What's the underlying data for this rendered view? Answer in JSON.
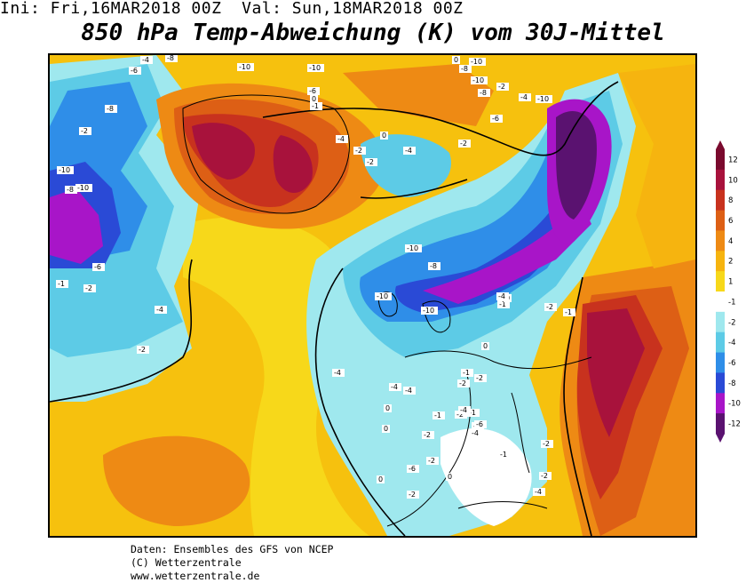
{
  "header": {
    "init": "Ini: Fri,16MAR2018 00Z",
    "valid": "Val: Sun,18MAR2018 00Z"
  },
  "title": "850 hPa Temp-Abweichung (K) vom 30J-Mittel",
  "legend": {
    "ticks": [
      "12",
      "10",
      "8",
      "6",
      "4",
      "2",
      "1",
      "-1",
      "-2",
      "-4",
      "-6",
      "-8",
      "-10",
      "-12"
    ],
    "colors": [
      "#7a0a2e",
      "#a8123c",
      "#c8321e",
      "#dd5f15",
      "#ee8a14",
      "#f6b40f",
      "#f7d81a",
      "#ffffff",
      "#9fe8ee",
      "#5dcbe6",
      "#2f8ee8",
      "#2a4ad6",
      "#a815c8",
      "#5a1270"
    ]
  },
  "map_labels": [
    {
      "t": "-4"
    },
    {
      "t": "-6"
    },
    {
      "t": "-8"
    },
    {
      "t": "-2"
    },
    {
      "t": "-10"
    },
    {
      "t": "-8"
    },
    {
      "t": "-10"
    },
    {
      "t": "-6"
    },
    {
      "t": "-8"
    },
    {
      "t": "-10"
    },
    {
      "t": "-10"
    },
    {
      "t": "-6"
    },
    {
      "t": "-2"
    },
    {
      "t": "-1"
    },
    {
      "t": "-4"
    },
    {
      "t": "-2"
    },
    {
      "t": "0"
    },
    {
      "t": "-4"
    },
    {
      "t": "-2"
    },
    {
      "t": "0"
    },
    {
      "t": "0"
    },
    {
      "t": "-10"
    },
    {
      "t": "-10"
    },
    {
      "t": "-8"
    },
    {
      "t": "-8"
    },
    {
      "t": "-2"
    },
    {
      "t": "-4"
    },
    {
      "t": "-6"
    },
    {
      "t": "-10"
    },
    {
      "t": "-10"
    },
    {
      "t": "-10"
    },
    {
      "t": "-8"
    },
    {
      "t": "-2"
    },
    {
      "t": "-4"
    },
    {
      "t": "-2"
    },
    {
      "t": "-1"
    },
    {
      "t": "-4"
    },
    {
      "t": "-4"
    },
    {
      "t": "-2"
    },
    {
      "t": "-1"
    },
    {
      "t": "-2"
    },
    {
      "t": "-4"
    },
    {
      "t": "-2"
    },
    {
      "t": "-1"
    },
    {
      "t": "-2"
    },
    {
      "t": "-6"
    },
    {
      "t": "-4"
    },
    {
      "t": "-2"
    },
    {
      "t": "0"
    },
    {
      "t": "-2"
    },
    {
      "t": "-4"
    },
    {
      "t": "-1"
    },
    {
      "t": "0"
    },
    {
      "t": "0"
    },
    {
      "t": "-1"
    },
    {
      "t": "-2"
    },
    {
      "t": "0"
    },
    {
      "t": "0"
    },
    {
      "t": "-1"
    },
    {
      "t": "0"
    },
    {
      "t": "-2"
    },
    {
      "t": "-4"
    },
    {
      "t": "-2"
    },
    {
      "t": "-1"
    },
    {
      "t": "-4"
    },
    {
      "t": "-10"
    },
    {
      "t": "-2"
    },
    {
      "t": "-6"
    }
  ],
  "footer": {
    "line1": "Daten: Ensembles des GFS von NCEP",
    "line2": "(C) Wetterzentrale",
    "line3": "www.wetterzentrale.de"
  }
}
